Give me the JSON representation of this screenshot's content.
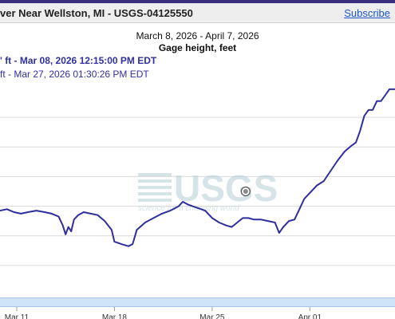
{
  "header": {
    "title": "ver Near Wellston, MI - USGS-04125550",
    "subscribe_label": "Subscribe"
  },
  "chart_data": {
    "type": "line",
    "date_range": "March 8, 2026 - April 7, 2026",
    "parameter": "Gage height, feet",
    "legend": {
      "entry1": "' ft - Mar 08, 2026 12:15:00 PM EDT",
      "entry2": "ft - Mar 27, 2026 01:30:26 PM EDT"
    },
    "watermark": {
      "logo": "USGS",
      "tagline": "science for a changing world"
    },
    "xlim_days": [
      9.8,
      38.1
    ],
    "x_tick_labels": [
      {
        "label": "Mar 11",
        "day": 11
      },
      {
        "label": "Mar 18",
        "day": 18
      },
      {
        "label": "Mar 25",
        "day": 25
      },
      {
        "label": "Apr 01",
        "day": 32
      }
    ],
    "gridlines_y_levels": [
      1,
      2,
      3,
      4,
      5,
      6
    ],
    "ylim": [
      0,
      7
    ],
    "highlight_point": {
      "day": 27.4,
      "value": 3.5
    },
    "series": [
      {
        "color": "#2e2e9e",
        "points": [
          [
            9.8,
            2.85
          ],
          [
            10.3,
            2.9
          ],
          [
            10.8,
            2.8
          ],
          [
            11.3,
            2.75
          ],
          [
            11.8,
            2.8
          ],
          [
            12.4,
            2.85
          ],
          [
            13.0,
            2.8
          ],
          [
            13.5,
            2.75
          ],
          [
            14.0,
            2.65
          ],
          [
            14.3,
            2.35
          ],
          [
            14.5,
            2.05
          ],
          [
            14.7,
            2.3
          ],
          [
            14.9,
            2.15
          ],
          [
            15.1,
            2.55
          ],
          [
            15.4,
            2.7
          ],
          [
            15.8,
            2.8
          ],
          [
            16.3,
            2.75
          ],
          [
            16.8,
            2.7
          ],
          [
            17.3,
            2.5
          ],
          [
            17.8,
            2.2
          ],
          [
            18.0,
            1.8
          ],
          [
            18.5,
            1.72
          ],
          [
            19.0,
            1.65
          ],
          [
            19.3,
            1.72
          ],
          [
            19.6,
            2.2
          ],
          [
            20.2,
            2.45
          ],
          [
            20.8,
            2.6
          ],
          [
            21.4,
            2.75
          ],
          [
            22.0,
            2.85
          ],
          [
            22.6,
            3.0
          ],
          [
            22.9,
            3.15
          ],
          [
            23.3,
            3.05
          ],
          [
            23.9,
            2.95
          ],
          [
            24.5,
            2.85
          ],
          [
            25.0,
            2.6
          ],
          [
            25.5,
            2.45
          ],
          [
            26.0,
            2.35
          ],
          [
            26.4,
            2.3
          ],
          [
            26.8,
            2.45
          ],
          [
            27.2,
            2.6
          ],
          [
            27.6,
            2.6
          ],
          [
            28.0,
            2.55
          ],
          [
            28.5,
            2.55
          ],
          [
            29.0,
            2.5
          ],
          [
            29.5,
            2.45
          ],
          [
            29.8,
            2.1
          ],
          [
            30.1,
            2.3
          ],
          [
            30.5,
            2.5
          ],
          [
            30.9,
            2.55
          ],
          [
            31.3,
            2.95
          ],
          [
            31.6,
            3.25
          ],
          [
            32.0,
            3.45
          ],
          [
            32.5,
            3.7
          ],
          [
            33.0,
            3.85
          ],
          [
            33.5,
            4.2
          ],
          [
            34.0,
            4.55
          ],
          [
            34.5,
            4.85
          ],
          [
            35.0,
            5.05
          ],
          [
            35.3,
            5.15
          ],
          [
            35.6,
            5.55
          ],
          [
            35.9,
            6.05
          ],
          [
            36.2,
            6.25
          ],
          [
            36.5,
            6.25
          ],
          [
            36.8,
            6.55
          ],
          [
            37.1,
            6.55
          ],
          [
            37.4,
            6.75
          ],
          [
            37.7,
            6.95
          ],
          [
            38.1,
            6.95
          ]
        ]
      }
    ]
  }
}
